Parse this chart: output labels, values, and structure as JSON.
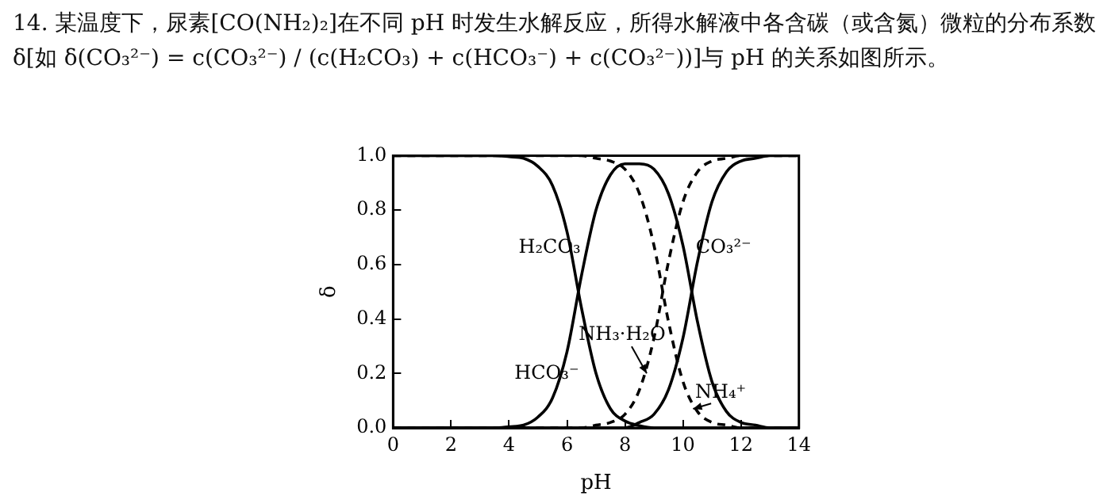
{
  "chart_data": {
    "type": "line",
    "title": "14. 某温度下，尿素[CO(NH₂)₂]在不同 pH 时发生水解反应，所得水解液中各含碳（或含氮）微粒的分布系数 δ[如 δ(CO₃²⁻) = c(CO₃²⁻) / (c(H₂CO₃) + c(HCO₃⁻) + c(CO₃²⁻))]与 pH 的关系如图所示。",
    "xlabel": "pH",
    "ylabel": "δ",
    "x": [
      0,
      0.5,
      1,
      1.5,
      2,
      2.5,
      3,
      3.5,
      4,
      4.5,
      5,
      5.5,
      6,
      6.5,
      7,
      7.5,
      8,
      8.5,
      9,
      9.5,
      10,
      10.5,
      11,
      11.5,
      12,
      12.5,
      13,
      13.5,
      14
    ],
    "series": [
      {
        "name": "H₂CO₃",
        "color": "#000000",
        "line_style": "solid",
        "values": [
          1,
          1,
          1,
          1,
          1,
          1,
          1,
          1,
          0.996,
          0.99,
          0.96,
          0.89,
          0.72,
          0.44,
          0.2,
          0.07,
          0.025,
          0.008,
          0,
          0,
          0,
          0,
          0,
          0,
          0,
          0,
          0,
          0,
          0
        ]
      },
      {
        "name": "HCO₃⁻",
        "color": "#000000",
        "line_style": "solid",
        "values": [
          0,
          0,
          0,
          0,
          0,
          0,
          0,
          0,
          0.004,
          0.01,
          0.04,
          0.11,
          0.28,
          0.56,
          0.8,
          0.93,
          0.97,
          0.97,
          0.95,
          0.86,
          0.67,
          0.39,
          0.17,
          0.06,
          0.02,
          0.01,
          0,
          0,
          0
        ]
      },
      {
        "name": "CO₃²⁻",
        "color": "#000000",
        "line_style": "solid",
        "values": [
          0,
          0,
          0,
          0,
          0,
          0,
          0,
          0,
          0,
          0,
          0,
          0,
          0,
          0,
          0,
          0,
          0,
          0.02,
          0.05,
          0.14,
          0.33,
          0.61,
          0.83,
          0.94,
          0.98,
          0.99,
          1,
          1,
          1
        ]
      },
      {
        "name": "NH₃·H₂O",
        "color": "#000000",
        "line_style": "dashed",
        "values": [
          0,
          0,
          0,
          0,
          0,
          0,
          0,
          0,
          0,
          0,
          0,
          0,
          0,
          0,
          0.01,
          0.02,
          0.05,
          0.14,
          0.33,
          0.61,
          0.83,
          0.94,
          0.98,
          0.99,
          1,
          1,
          1,
          1,
          1
        ]
      },
      {
        "name": "NH₄⁺",
        "color": "#000000",
        "line_style": "dashed",
        "values": [
          1,
          1,
          1,
          1,
          1,
          1,
          1,
          1,
          1,
          1,
          1,
          1,
          1,
          1,
          0.99,
          0.98,
          0.95,
          0.86,
          0.67,
          0.39,
          0.17,
          0.06,
          0.02,
          0.01,
          0,
          0,
          0,
          0,
          0
        ]
      }
    ],
    "xlim": [
      0,
      14
    ],
    "xticks": [
      0,
      2,
      4,
      6,
      8,
      10,
      12,
      14
    ],
    "ylim": [
      0,
      1
    ],
    "yticks": [
      {
        "value": 0,
        "label": "0.0"
      },
      0.2,
      0.4,
      0.6,
      0.8,
      {
        "value": 1,
        "label": "1.0"
      }
    ],
    "grid": false,
    "legend": false,
    "marker": "none"
  }
}
